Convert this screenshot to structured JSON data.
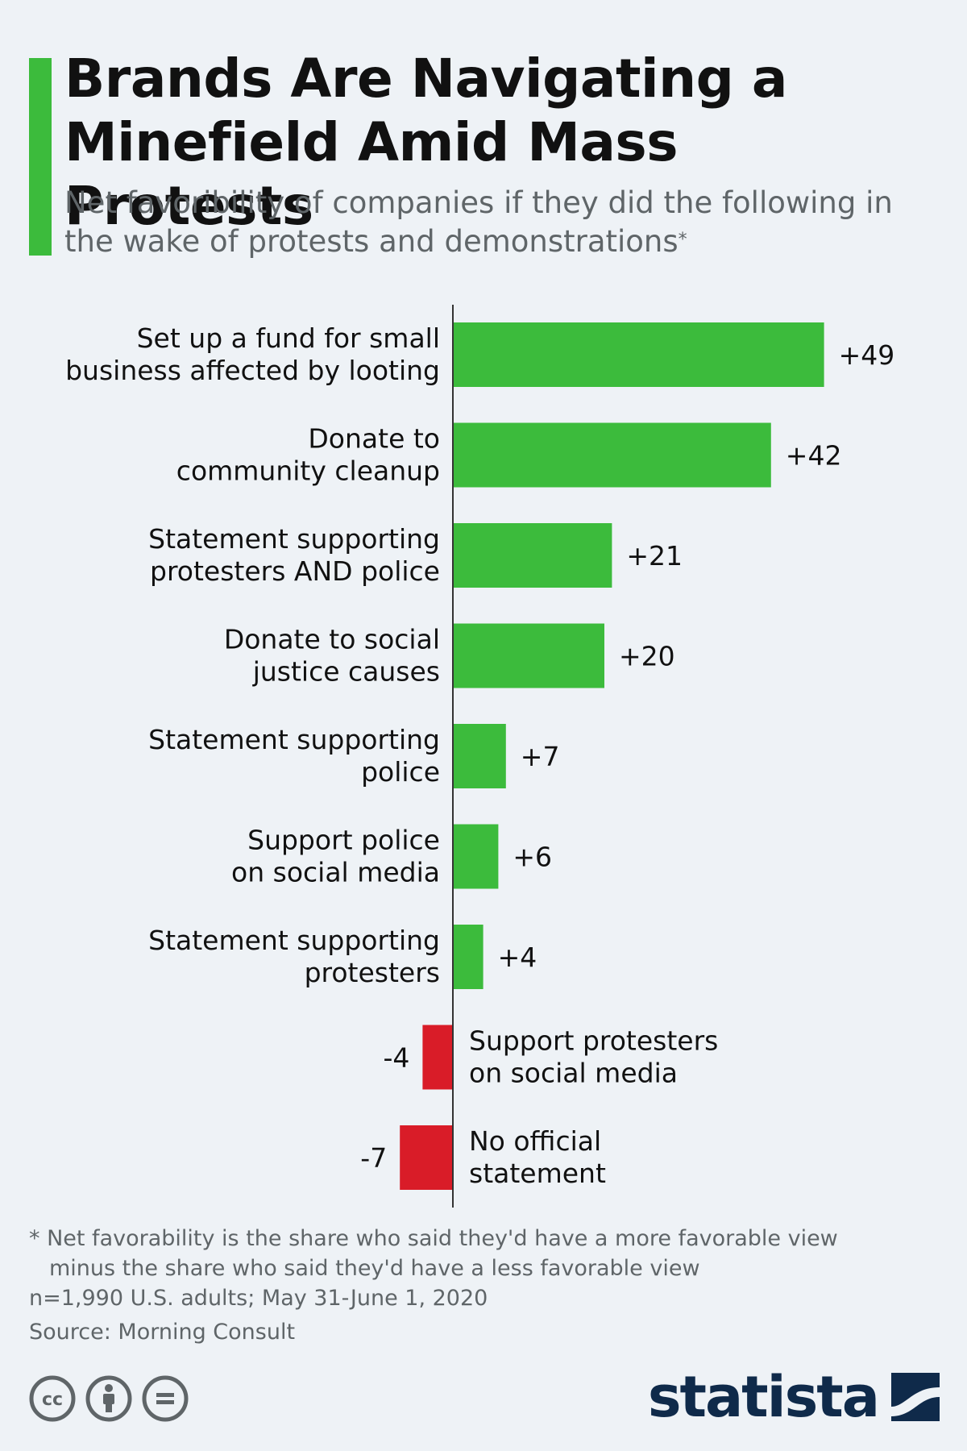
{
  "header": {
    "title": "Brands Are Navigating a Minefield Amid Mass Protests",
    "subtitle": "Net favoribility of companies if they did the following in the wake of protests and demonstrations",
    "subtitle_mark": "*",
    "accent_color": "#3cbb3c"
  },
  "chart_data": {
    "type": "bar",
    "orientation": "horizontal",
    "title": "",
    "xlabel": "",
    "ylabel": "",
    "xlim": [
      -7,
      49
    ],
    "grid": false,
    "value_labels": true,
    "colors": {
      "positive": "#3cbb3c",
      "negative": "#d91c28"
    },
    "categories": [
      "Set up a fund for small business affected by looting",
      "Donate to community cleanup",
      "Statement supporting protesters AND police",
      "Donate to social justice causes",
      "Statement supporting police",
      "Support police on social media",
      "Statement supporting protesters",
      "Support protesters on social media",
      "No official statement"
    ],
    "category_lines": [
      [
        "Set up a fund for small",
        "business affected by looting"
      ],
      [
        "Donate to",
        "community cleanup"
      ],
      [
        "Statement supporting",
        "protesters AND police"
      ],
      [
        "Donate to social",
        "justice causes"
      ],
      [
        "Statement supporting",
        "police"
      ],
      [
        "Support police",
        "on social media"
      ],
      [
        "Statement supporting",
        "protesters"
      ],
      [
        "Support protesters",
        "on social media"
      ],
      [
        "No official",
        "statement"
      ]
    ],
    "values": [
      49,
      42,
      21,
      20,
      7,
      6,
      4,
      -4,
      -7
    ],
    "value_labels_text": [
      "+49",
      "+42",
      "+21",
      "+20",
      "+7",
      "+6",
      "+4",
      "-4",
      "-7"
    ]
  },
  "footer": {
    "note_line1": "* Net favorability is the share who said they'd have a more favorable view",
    "note_line2": "minus the share who said they'd have a less favorable view",
    "note_line3": "n=1,990 U.S. adults; May 31-June 1, 2020",
    "source": "Source: Morning Consult",
    "brand": "statista",
    "license_icons": [
      "cc-icon",
      "attribution-icon",
      "no-derivatives-icon"
    ]
  }
}
